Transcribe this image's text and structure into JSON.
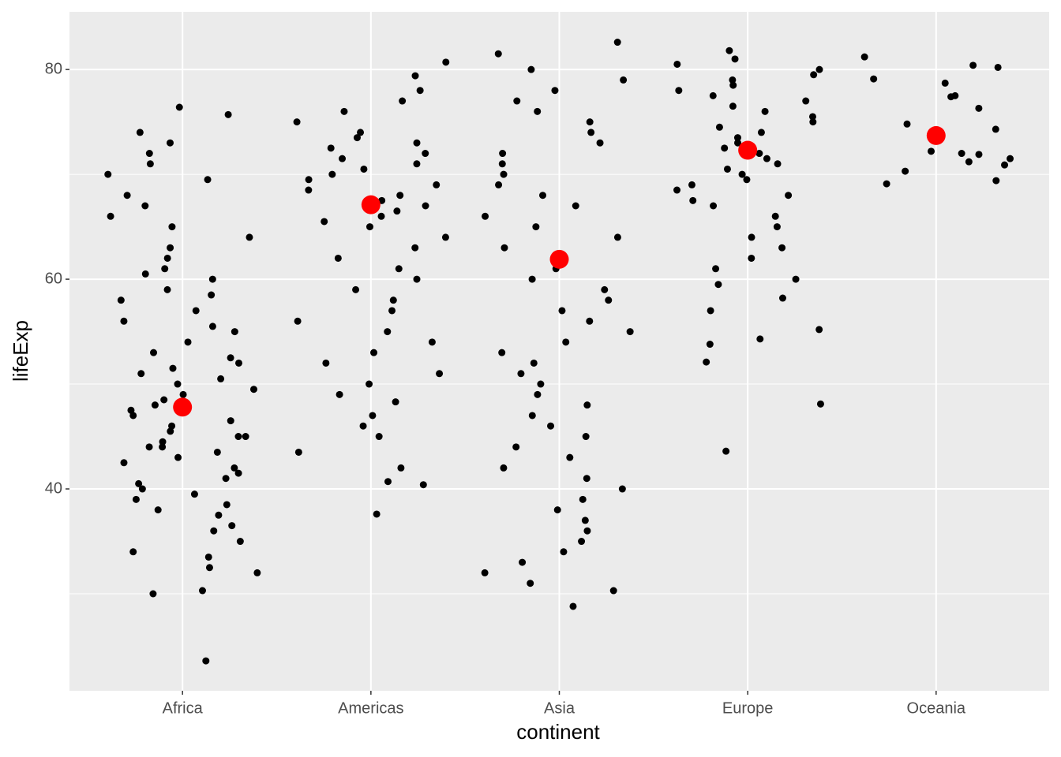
{
  "chart_data": {
    "type": "strip",
    "x_label": "continent",
    "y_label": "lifeExp",
    "categories": [
      "Africa",
      "Americas",
      "Asia",
      "Europe",
      "Oceania"
    ],
    "points": [
      [
        23.6,
        30.0,
        30.3,
        32.0,
        32.5,
        33.5,
        34.0,
        35.0,
        36.0,
        36.5,
        37.5,
        38.0,
        38.5,
        39.0,
        39.5,
        40.0,
        40.5,
        41.0,
        41.5,
        42.0,
        42.5,
        43.0,
        43.5,
        44.0,
        44.0,
        44.5,
        45.0,
        45.0,
        45.5,
        46.0,
        46.5,
        47.0,
        47.5,
        48.0,
        48.5,
        49.0,
        49.5,
        50.0,
        50.5,
        51.0,
        51.5,
        52.0,
        52.5,
        53.0,
        54.0,
        55.0,
        55.5,
        56.0,
        57.0,
        58.0,
        58.5,
        59.0,
        60.0,
        60.5,
        61.0,
        62.0,
        63.0,
        64.0,
        65.0,
        66.0,
        67.0,
        68.0,
        69.5,
        70.0,
        71.0,
        72.0,
        73.0,
        74.0,
        75.7,
        76.4
      ],
      [
        37.6,
        40.4,
        40.7,
        42.0,
        43.5,
        45.0,
        46.0,
        47.0,
        48.3,
        49.0,
        50.0,
        51.0,
        52.0,
        53.0,
        54.0,
        55.0,
        56.0,
        57.0,
        58.0,
        59.0,
        60.0,
        61.0,
        62.0,
        63.0,
        64.0,
        65.0,
        65.5,
        66.0,
        66.5,
        67.0,
        67.5,
        68.0,
        68.5,
        69.0,
        69.5,
        70.0,
        70.5,
        71.0,
        71.5,
        72.0,
        72.5,
        73.0,
        73.5,
        74.0,
        75.0,
        76.0,
        77.0,
        78.0,
        79.4,
        80.7
      ],
      [
        28.8,
        30.3,
        31.0,
        32.0,
        33.0,
        34.0,
        35.0,
        36.0,
        37.0,
        38.0,
        39.0,
        40.0,
        41.0,
        42.0,
        43.0,
        44.0,
        45.0,
        46.0,
        47.0,
        48.0,
        49.0,
        50.0,
        51.0,
        52.0,
        53.0,
        54.0,
        55.0,
        56.0,
        57.0,
        58.0,
        59.0,
        60.0,
        61.0,
        62.0,
        63.0,
        64.0,
        65.0,
        66.0,
        67.0,
        68.0,
        69.0,
        70.0,
        71.0,
        72.0,
        73.0,
        74.0,
        75.0,
        76.0,
        77.0,
        78.0,
        79.0,
        80.0,
        81.5,
        82.6
      ],
      [
        43.6,
        48.1,
        52.1,
        53.8,
        54.3,
        55.2,
        57.0,
        58.2,
        59.5,
        60.0,
        61.0,
        62.0,
        63.0,
        64.0,
        65.0,
        66.0,
        67.0,
        67.5,
        68.0,
        68.5,
        69.0,
        69.5,
        70.0,
        70.5,
        71.0,
        71.5,
        72.0,
        72.5,
        73.0,
        73.5,
        74.0,
        74.5,
        75.0,
        75.5,
        76.0,
        76.5,
        77.0,
        77.5,
        78.0,
        78.5,
        79.0,
        79.5,
        80.0,
        80.5,
        81.0,
        81.8
      ],
      [
        69.1,
        69.4,
        70.3,
        70.9,
        71.2,
        71.5,
        71.9,
        72.2,
        72.0,
        74.3,
        74.8,
        76.3,
        77.4,
        77.5,
        78.7,
        79.1,
        80.2,
        80.4,
        81.2
      ]
    ],
    "point_color": "#000000",
    "means": [
      47.8,
      67.1,
      61.9,
      72.3,
      73.7
    ],
    "mean_color": "#ff0000",
    "ylim": [
      20.75,
      85.5
    ],
    "yticks": [
      40,
      60,
      80
    ],
    "grid": true
  }
}
